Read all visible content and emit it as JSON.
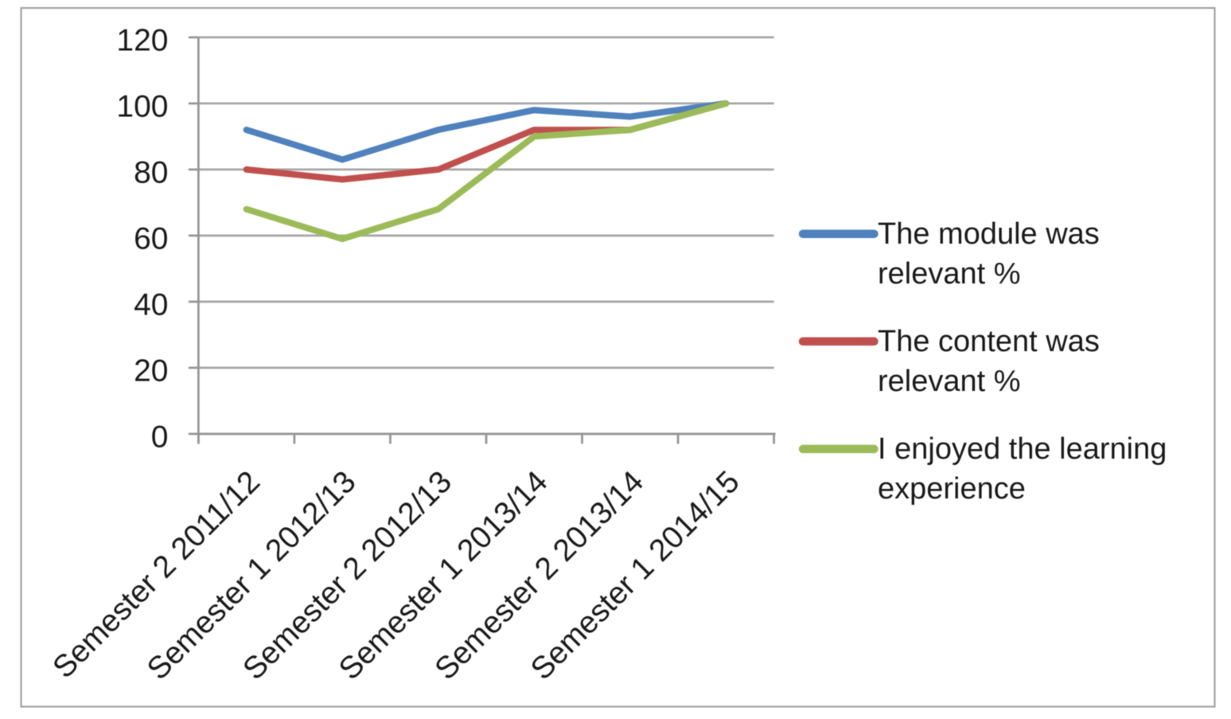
{
  "chart_data": {
    "type": "line",
    "title": "",
    "xlabel": "",
    "ylabel": "",
    "categories": [
      "Semester 2 2011/12",
      "Semester 1 2012/13",
      "Semester 2 2012/13",
      "Semester 1 2013/14",
      "Semester 2 2013/14",
      "Semester 1 2014/15"
    ],
    "series": [
      {
        "name": "The module was relevant %",
        "color": "#4F81BD",
        "values": [
          92,
          83,
          92,
          98,
          96,
          100
        ]
      },
      {
        "name": "The content was relevant %",
        "color": "#C0504D",
        "values": [
          80,
          77,
          80,
          92,
          92,
          100
        ]
      },
      {
        "name": "I enjoyed the learning experience",
        "color": "#9BBB59",
        "values": [
          68,
          59,
          68,
          90,
          92,
          100
        ]
      }
    ],
    "ylim": [
      0,
      120
    ],
    "yticks": [
      0,
      20,
      40,
      60,
      80,
      100,
      120
    ],
    "grid": "horizontal",
    "legend_position": "right",
    "legend_wrapped_lines": [
      [
        "The module was",
        "relevant %"
      ],
      [
        "The content was",
        "relevant %"
      ],
      [
        "I enjoyed the learning",
        "experience"
      ]
    ]
  },
  "styles": {
    "background_color": "#ffffff",
    "border_color": "#a3a3a3",
    "axis_color": "#969696",
    "gridline_color": "#a6a6a6",
    "tick_color": "#969696",
    "text_color": "#1a1a1a"
  }
}
